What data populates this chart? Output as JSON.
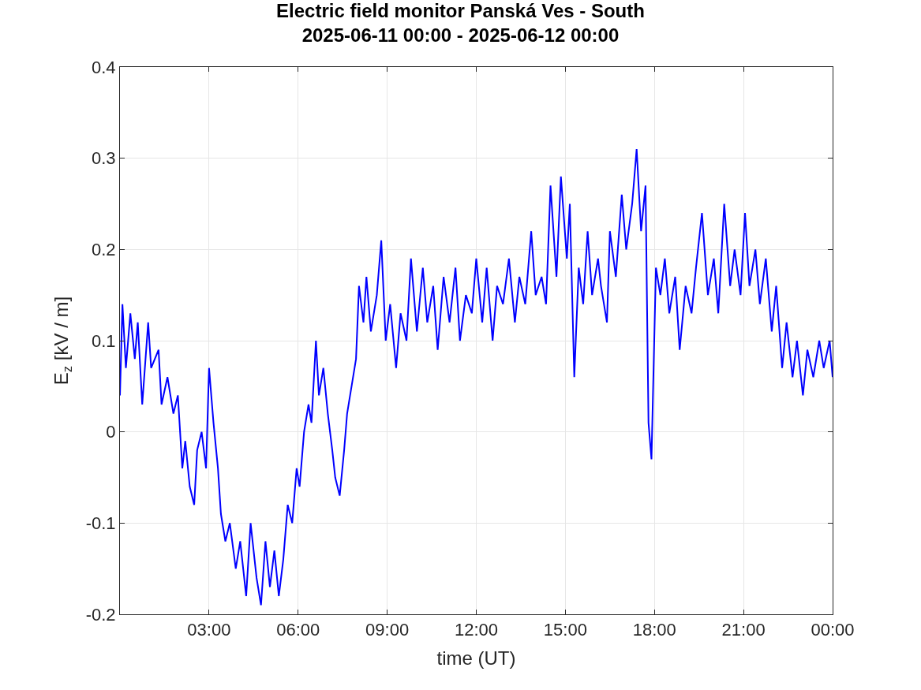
{
  "chart_data": {
    "type": "line",
    "title": "Electric field monitor Panská Ves - South",
    "subtitle": "2025-06-11 00:00 - 2025-06-12 00:00",
    "xlabel": "time (UT)",
    "ylabel": "E$_{z}$ [kV / m]",
    "x": [
      "2025-06-11T00:00",
      "2025-06-11T00:05",
      "2025-06-11T00:12",
      "2025-06-11T00:21",
      "2025-06-11T00:30",
      "2025-06-11T00:36",
      "2025-06-11T00:45",
      "2025-06-11T00:57",
      "2025-06-11T01:03",
      "2025-06-11T01:18",
      "2025-06-11T01:24",
      "2025-06-11T01:36",
      "2025-06-11T01:48",
      "2025-06-11T01:57",
      "2025-06-11T02:06",
      "2025-06-11T02:12",
      "2025-06-11T02:21",
      "2025-06-11T02:30",
      "2025-06-11T02:36",
      "2025-06-11T02:45",
      "2025-06-11T02:54",
      "2025-06-11T03:00",
      "2025-06-11T03:09",
      "2025-06-11T03:18",
      "2025-06-11T03:24",
      "2025-06-11T03:33",
      "2025-06-11T03:42",
      "2025-06-11T03:54",
      "2025-06-11T04:03",
      "2025-06-11T04:15",
      "2025-06-11T04:24",
      "2025-06-11T04:36",
      "2025-06-11T04:45",
      "2025-06-11T04:54",
      "2025-06-11T05:03",
      "2025-06-11T05:12",
      "2025-06-11T05:21",
      "2025-06-11T05:30",
      "2025-06-11T05:39",
      "2025-06-11T05:48",
      "2025-06-11T05:57",
      "2025-06-11T06:03",
      "2025-06-11T06:12",
      "2025-06-11T06:21",
      "2025-06-11T06:27",
      "2025-06-11T06:36",
      "2025-06-11T06:42",
      "2025-06-11T06:51",
      "2025-06-11T07:00",
      "2025-06-11T07:09",
      "2025-06-11T07:15",
      "2025-06-11T07:24",
      "2025-06-11T07:33",
      "2025-06-11T07:39",
      "2025-06-11T07:48",
      "2025-06-11T07:57",
      "2025-06-11T08:03",
      "2025-06-11T08:12",
      "2025-06-11T08:18",
      "2025-06-11T08:27",
      "2025-06-11T08:39",
      "2025-06-11T08:48",
      "2025-06-11T08:57",
      "2025-06-11T09:06",
      "2025-06-11T09:18",
      "2025-06-11T09:27",
      "2025-06-11T09:39",
      "2025-06-11T09:48",
      "2025-06-11T10:00",
      "2025-06-11T10:12",
      "2025-06-11T10:21",
      "2025-06-11T10:33",
      "2025-06-11T10:42",
      "2025-06-11T10:54",
      "2025-06-11T11:06",
      "2025-06-11T11:18",
      "2025-06-11T11:27",
      "2025-06-11T11:39",
      "2025-06-11T11:51",
      "2025-06-11T12:00",
      "2025-06-11T12:12",
      "2025-06-11T12:21",
      "2025-06-11T12:33",
      "2025-06-11T12:42",
      "2025-06-11T12:54",
      "2025-06-11T13:06",
      "2025-06-11T13:18",
      "2025-06-11T13:27",
      "2025-06-11T13:39",
      "2025-06-11T13:51",
      "2025-06-11T14:00",
      "2025-06-11T14:12",
      "2025-06-11T14:21",
      "2025-06-11T14:30",
      "2025-06-11T14:42",
      "2025-06-11T14:51",
      "2025-06-11T15:03",
      "2025-06-11T15:09",
      "2025-06-11T15:18",
      "2025-06-11T15:27",
      "2025-06-11T15:36",
      "2025-06-11T15:45",
      "2025-06-11T15:54",
      "2025-06-11T16:06",
      "2025-06-11T16:12",
      "2025-06-11T16:24",
      "2025-06-11T16:30",
      "2025-06-11T16:42",
      "2025-06-11T16:54",
      "2025-06-11T17:03",
      "2025-06-11T17:15",
      "2025-06-11T17:24",
      "2025-06-11T17:33",
      "2025-06-11T17:42",
      "2025-06-11T17:48",
      "2025-06-11T17:54",
      "2025-06-11T18:03",
      "2025-06-11T18:12",
      "2025-06-11T18:21",
      "2025-06-11T18:30",
      "2025-06-11T18:42",
      "2025-06-11T18:51",
      "2025-06-11T19:03",
      "2025-06-11T19:15",
      "2025-06-11T19:24",
      "2025-06-11T19:36",
      "2025-06-11T19:48",
      "2025-06-11T20:00",
      "2025-06-11T20:09",
      "2025-06-11T20:21",
      "2025-06-11T20:33",
      "2025-06-11T20:42",
      "2025-06-11T20:54",
      "2025-06-11T21:03",
      "2025-06-11T21:12",
      "2025-06-11T21:24",
      "2025-06-11T21:33",
      "2025-06-11T21:45",
      "2025-06-11T21:57",
      "2025-06-11T22:06",
      "2025-06-11T22:18",
      "2025-06-11T22:27",
      "2025-06-11T22:39",
      "2025-06-11T22:48",
      "2025-06-11T23:00",
      "2025-06-11T23:09",
      "2025-06-11T23:21",
      "2025-06-11T23:33",
      "2025-06-11T23:42",
      "2025-06-11T23:54",
      "2025-06-12T00:00"
    ],
    "series": [
      {
        "color": "#0000ff",
        "values": [
          0.04,
          0.14,
          0.07,
          0.13,
          0.08,
          0.12,
          0.03,
          0.12,
          0.07,
          0.09,
          0.03,
          0.06,
          0.02,
          0.04,
          -0.04,
          -0.01,
          -0.06,
          -0.08,
          -0.02,
          0.0,
          -0.04,
          0.07,
          0.01,
          -0.04,
          -0.09,
          -0.12,
          -0.1,
          -0.15,
          -0.12,
          -0.18,
          -0.1,
          -0.16,
          -0.19,
          -0.12,
          -0.17,
          -0.13,
          -0.18,
          -0.14,
          -0.08,
          -0.1,
          -0.04,
          -0.06,
          0.0,
          0.03,
          0.01,
          0.1,
          0.04,
          0.07,
          0.02,
          -0.02,
          -0.05,
          -0.07,
          -0.02,
          0.02,
          0.05,
          0.08,
          0.16,
          0.12,
          0.17,
          0.11,
          0.15,
          0.21,
          0.1,
          0.14,
          0.07,
          0.13,
          0.1,
          0.19,
          0.11,
          0.18,
          0.12,
          0.16,
          0.09,
          0.17,
          0.12,
          0.18,
          0.1,
          0.15,
          0.13,
          0.19,
          0.12,
          0.18,
          0.1,
          0.16,
          0.14,
          0.19,
          0.12,
          0.17,
          0.14,
          0.22,
          0.15,
          0.17,
          0.14,
          0.27,
          0.17,
          0.28,
          0.19,
          0.25,
          0.06,
          0.18,
          0.14,
          0.22,
          0.15,
          0.19,
          0.16,
          0.12,
          0.22,
          0.17,
          0.26,
          0.2,
          0.25,
          0.31,
          0.22,
          0.27,
          0.01,
          -0.03,
          0.18,
          0.15,
          0.19,
          0.13,
          0.17,
          0.09,
          0.16,
          0.13,
          0.18,
          0.24,
          0.15,
          0.19,
          0.13,
          0.25,
          0.16,
          0.2,
          0.15,
          0.24,
          0.16,
          0.2,
          0.14,
          0.19,
          0.11,
          0.16,
          0.07,
          0.12,
          0.06,
          0.1,
          0.04,
          0.09,
          0.06,
          0.1,
          0.07,
          0.1,
          0.06
        ]
      }
    ],
    "xlim": [
      "2025-06-11T00:00",
      "2025-06-12T00:00"
    ],
    "xticks": [
      {
        "value": "2025-06-11T03:00",
        "label": "03:00"
      },
      {
        "value": "2025-06-11T06:00",
        "label": "06:00"
      },
      {
        "value": "2025-06-11T09:00",
        "label": "09:00"
      },
      {
        "value": "2025-06-11T12:00",
        "label": "12:00"
      },
      {
        "value": "2025-06-11T15:00",
        "label": "15:00"
      },
      {
        "value": "2025-06-11T18:00",
        "label": "18:00"
      },
      {
        "value": "2025-06-11T21:00",
        "label": "21:00"
      },
      {
        "value": "2025-06-12T00:00",
        "label": "00:00"
      }
    ],
    "ylim": [
      -0.2,
      0.4
    ],
    "yticks": [
      {
        "value": -0.2,
        "label": "-0.2"
      },
      {
        "value": -0.1,
        "label": "-0.1"
      },
      {
        "value": 0,
        "label": "0"
      },
      {
        "value": 0.1,
        "label": "0.1"
      },
      {
        "value": 0.2,
        "label": "0.2"
      },
      {
        "value": 0.3,
        "label": "0.3"
      },
      {
        "value": 0.4,
        "label": "0.4"
      }
    ],
    "grid": true,
    "line_style": "solid",
    "marker": "none"
  }
}
